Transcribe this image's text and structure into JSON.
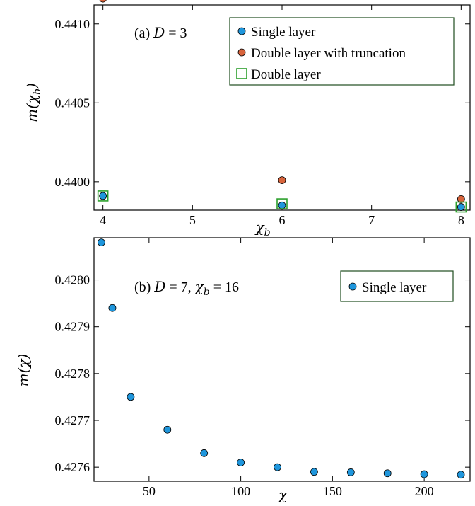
{
  "colors": {
    "single": "#1f96dc",
    "double_trunc": "#d8643c",
    "double": "#2ca02c",
    "legend_border": "#1f4d1f"
  },
  "chart_data": [
    {
      "type": "scatter",
      "panel_label": "(a) D = 3",
      "xlabel": "χ_b",
      "ylabel": "m(χ_b)",
      "xlim": [
        3.9,
        8.1
      ],
      "ylim": [
        0.43982,
        0.44112
      ],
      "xticks": [
        4,
        5,
        6,
        7,
        8
      ],
      "xtick_labels": [
        "4",
        "5",
        "6",
        "7",
        "8"
      ],
      "yticks": [
        0.44,
        0.4405,
        0.441
      ],
      "ytick_labels": [
        "0.4400",
        "0.4405",
        "0.4410"
      ],
      "legend_position": "top-right",
      "series": [
        {
          "name": "Single layer",
          "marker": "circle",
          "color_key": "single",
          "x": [
            4,
            6,
            8
          ],
          "y": [
            0.43991,
            0.43985,
            0.43984
          ]
        },
        {
          "name": "Double layer with truncation",
          "marker": "circle",
          "color_key": "double_trunc",
          "x": [
            4,
            6,
            8
          ],
          "y": [
            0.44116,
            0.44001,
            0.43989
          ]
        },
        {
          "name": "Double layer",
          "marker": "square",
          "color_key": "double",
          "x": [
            4,
            6,
            8
          ],
          "y": [
            0.43991,
            0.43986,
            0.43984
          ]
        }
      ]
    },
    {
      "type": "scatter",
      "panel_label": "(b) D = 7, χ_b = 16",
      "xlabel": "χ",
      "ylabel": "m(χ)",
      "xlim": [
        20,
        225
      ],
      "ylim": [
        0.42757,
        0.42809
      ],
      "xticks": [
        50,
        100,
        150,
        200
      ],
      "xtick_labels": [
        "50",
        "100",
        "150",
        "200"
      ],
      "yticks": [
        0.4276,
        0.4277,
        0.4278,
        0.4279,
        0.428
      ],
      "ytick_labels": [
        "0.4276",
        "0.4277",
        "0.4278",
        "0.4279",
        "0.4280"
      ],
      "legend_position": "top-right",
      "series": [
        {
          "name": "Single layer",
          "marker": "circle",
          "color_key": "single",
          "x": [
            24,
            30,
            40,
            60,
            80,
            100,
            120,
            140,
            160,
            180,
            200,
            220
          ],
          "y": [
            0.42808,
            0.42794,
            0.42775,
            0.42768,
            0.42763,
            0.42761,
            0.4276,
            0.42759,
            0.427589,
            0.427587,
            0.427585,
            0.427584
          ]
        }
      ]
    }
  ]
}
